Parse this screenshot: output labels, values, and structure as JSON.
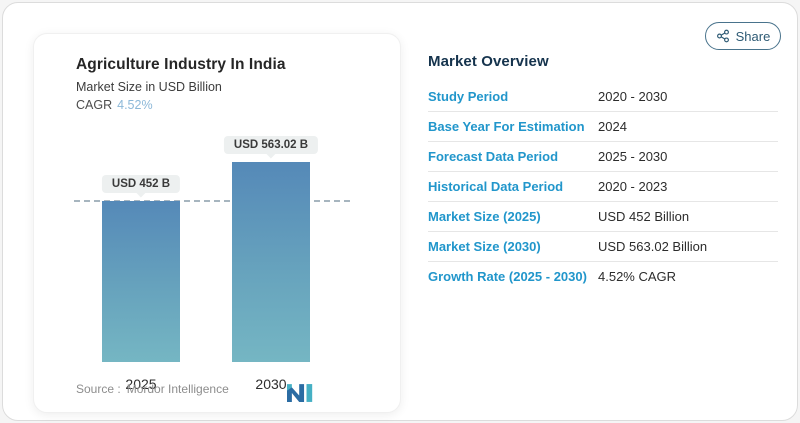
{
  "share_button": {
    "label": "Share"
  },
  "chart_card": {
    "title": "Agriculture Industry In India",
    "subtitle": "Market Size in USD Billion",
    "cagr_label": "CAGR",
    "cagr_value": "4.52%",
    "source_label": "Source :",
    "source_name": "Mordor Intelligence"
  },
  "chart_data": {
    "type": "bar",
    "title": "Agriculture Industry In India",
    "ylabel": "Market Size in USD Billion",
    "categories": [
      "2025",
      "2030"
    ],
    "values": [
      452,
      563.02
    ],
    "bar_labels": [
      "USD 452 B",
      "USD 563.02 B"
    ],
    "reference_line": 452,
    "cagr_percent": "4.52%",
    "legend": "none",
    "grid": "off",
    "colors": {
      "bar_gradient_top": "#5589b8",
      "bar_gradient_bottom": "#75b6c3",
      "reference_line": "#a7b5bf",
      "accent_blue": "#2196cb",
      "cagr_blue": "#8cb8d8"
    }
  },
  "overview": {
    "title": "Market Overview",
    "rows": [
      {
        "label": "Study Period",
        "value": "2020 - 2030"
      },
      {
        "label": "Base Year For Estimation",
        "value": "2024"
      },
      {
        "label": "Forecast Data Period",
        "value": "2025 - 2030"
      },
      {
        "label": "Historical Data Period",
        "value": "2020 - 2023"
      },
      {
        "label": "Market Size (2025)",
        "value": "USD 452 Billion"
      },
      {
        "label": "Market Size (2030)",
        "value": "USD 563.02 Billion"
      },
      {
        "label": "Growth Rate (2025 - 2030)",
        "value": "4.52% CAGR"
      }
    ]
  }
}
